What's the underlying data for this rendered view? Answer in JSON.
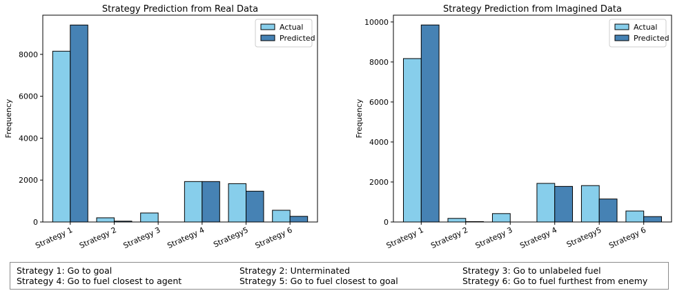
{
  "chart_data": [
    {
      "type": "bar",
      "title": "Strategy Prediction from Real Data",
      "xlabel": "",
      "ylabel": "Frequency",
      "categories": [
        "Strategy 1",
        "Strategy 2",
        "Strategy 3",
        "Strategy 4",
        "Strategy5",
        "Strategy 6"
      ],
      "series": [
        {
          "name": "Actual",
          "values": [
            8150,
            200,
            430,
            1930,
            1830,
            560
          ],
          "color": "#87ceeb"
        },
        {
          "name": "Predicted",
          "values": [
            9400,
            40,
            0,
            1930,
            1470,
            270
          ],
          "color": "#4682b4"
        }
      ],
      "ylim": [
        0,
        9870
      ],
      "yticks": [
        0,
        2000,
        4000,
        6000,
        8000
      ],
      "grid": false,
      "legend": "top-right"
    },
    {
      "type": "bar",
      "title": "Strategy Prediction from Imagined Data",
      "xlabel": "",
      "ylabel": "Frequency",
      "categories": [
        "Strategy 1",
        "Strategy 2",
        "Strategy 3",
        "Strategy 4",
        "Strategy5",
        "Strategy 6"
      ],
      "series": [
        {
          "name": "Actual",
          "values": [
            8170,
            180,
            420,
            1930,
            1820,
            550
          ],
          "color": "#87ceeb"
        },
        {
          "name": "Predicted",
          "values": [
            9850,
            20,
            0,
            1780,
            1150,
            270
          ],
          "color": "#4682b4"
        }
      ],
      "ylim": [
        0,
        10340
      ],
      "yticks": [
        0,
        2000,
        4000,
        6000,
        8000,
        10000
      ],
      "grid": false,
      "legend": "top-right"
    }
  ],
  "strategy_key": [
    "Strategy 1: Go to goal",
    "Strategy 2: Unterminated",
    "Strategy 3: Go to unlabeled fuel",
    "Strategy 4: Go to fuel closest to agent",
    "Strategy 5: Go to fuel closest to goal",
    "Strategy 6: Go to fuel furthest from enemy"
  ]
}
